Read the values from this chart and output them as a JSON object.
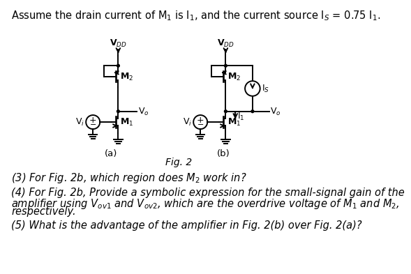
{
  "title_text": "Assume the drain current of M$_1$ is I$_1$, and the current source I$_S$ = 0.75 I$_1$.",
  "fig_label": "Fig. 2",
  "q3": "(3) For Fig. 2b, which region does M$_2$ work in?",
  "q4_line1": "(4) For Fig. 2b, Provide a symbolic expression for the small-signal gain of the",
  "q4_line2": "amplifier using V$_{ov1}$ and V$_{ov2}$, which are the overdrive voltage of M$_1$ and M$_2$,",
  "q4_line3": "respectively.",
  "q5": "(5) What is the advantage of the amplifier in Fig. 2(b) over Fig. 2(a)?",
  "bg_color": "#ffffff",
  "line_color": "#000000",
  "fontsize_title": 10.5,
  "fontsize_body": 10.5,
  "fontsize_label": 9.5,
  "fontsize_circuit": 9
}
